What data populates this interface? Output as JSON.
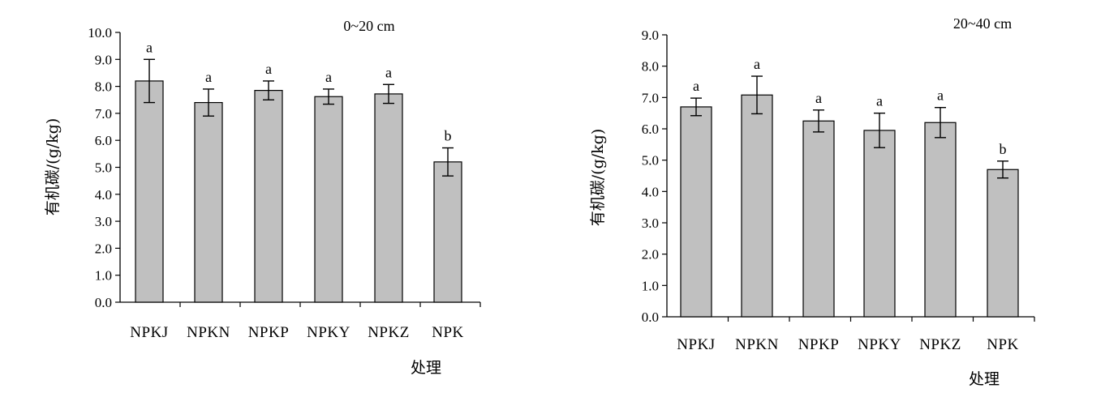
{
  "chart_data": [
    {
      "type": "bar",
      "title": "0~20 cm",
      "xlabel": "处理",
      "ylabel": "有机碳/(g/kg)",
      "categories": [
        "NPKJ",
        "NPKN",
        "NPKP",
        "NPKY",
        "NPKZ",
        "NPK"
      ],
      "values": [
        8.2,
        7.4,
        7.85,
        7.62,
        7.72,
        5.2
      ],
      "errors": [
        0.8,
        0.5,
        0.35,
        0.28,
        0.35,
        0.52
      ],
      "significance": [
        "a",
        "a",
        "a",
        "a",
        "a",
        "b"
      ],
      "ylim": [
        0,
        10
      ],
      "yticks": [
        "0.0",
        "1.0",
        "2.0",
        "3.0",
        "4.0",
        "5.0",
        "6.0",
        "7.0",
        "8.0",
        "9.0",
        "10.0"
      ],
      "bar_color": "#c0c0c0",
      "grid": false
    },
    {
      "type": "bar",
      "title": "20~40 cm",
      "xlabel": "处理",
      "ylabel": "有机碳/(g/kg)",
      "categories": [
        "NPKJ",
        "NPKN",
        "NPKP",
        "NPKY",
        "NPKZ",
        "NPK"
      ],
      "values": [
        6.7,
        7.08,
        6.25,
        5.95,
        6.2,
        4.7
      ],
      "errors": [
        0.28,
        0.6,
        0.35,
        0.55,
        0.48,
        0.27
      ],
      "significance": [
        "a",
        "a",
        "a",
        "a",
        "a",
        "b"
      ],
      "ylim": [
        0,
        9
      ],
      "yticks": [
        "0.0",
        "1.0",
        "2.0",
        "3.0",
        "4.0",
        "5.0",
        "6.0",
        "7.0",
        "8.0",
        "9.0"
      ],
      "bar_color": "#c0c0c0",
      "grid": false
    }
  ]
}
